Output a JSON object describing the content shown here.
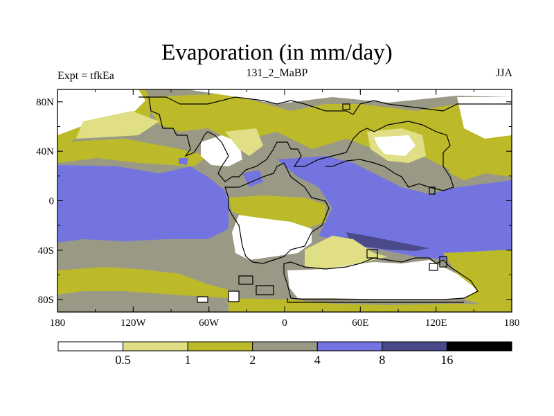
{
  "title": "Evaporation (in mm/day)",
  "left_label": "Expt = tfkEa",
  "center_label": "131_2_MaBP",
  "right_label": "JJA",
  "axes": {
    "lon_ticks": [
      "180",
      "120W",
      "60W",
      "0",
      "60E",
      "120E",
      "180"
    ],
    "lat_ticks": [
      "80N",
      "40N",
      "0",
      "40S",
      "80S"
    ]
  },
  "colorbar": {
    "levels": [
      "0.5",
      "1",
      "2",
      "4",
      "8",
      "16"
    ],
    "colors": [
      "#ffffff",
      "#e0df85",
      "#bdba2a",
      "#9a9985",
      "#7474e0",
      "#4a4a8a",
      "#000000"
    ]
  },
  "palette": {
    "white": "#ffffff",
    "pale_yellow": "#e0df85",
    "olive": "#bdba2a",
    "gray": "#9a9985",
    "blue": "#7474e0",
    "dark_blue": "#4a4a8a",
    "black": "#000000"
  }
}
